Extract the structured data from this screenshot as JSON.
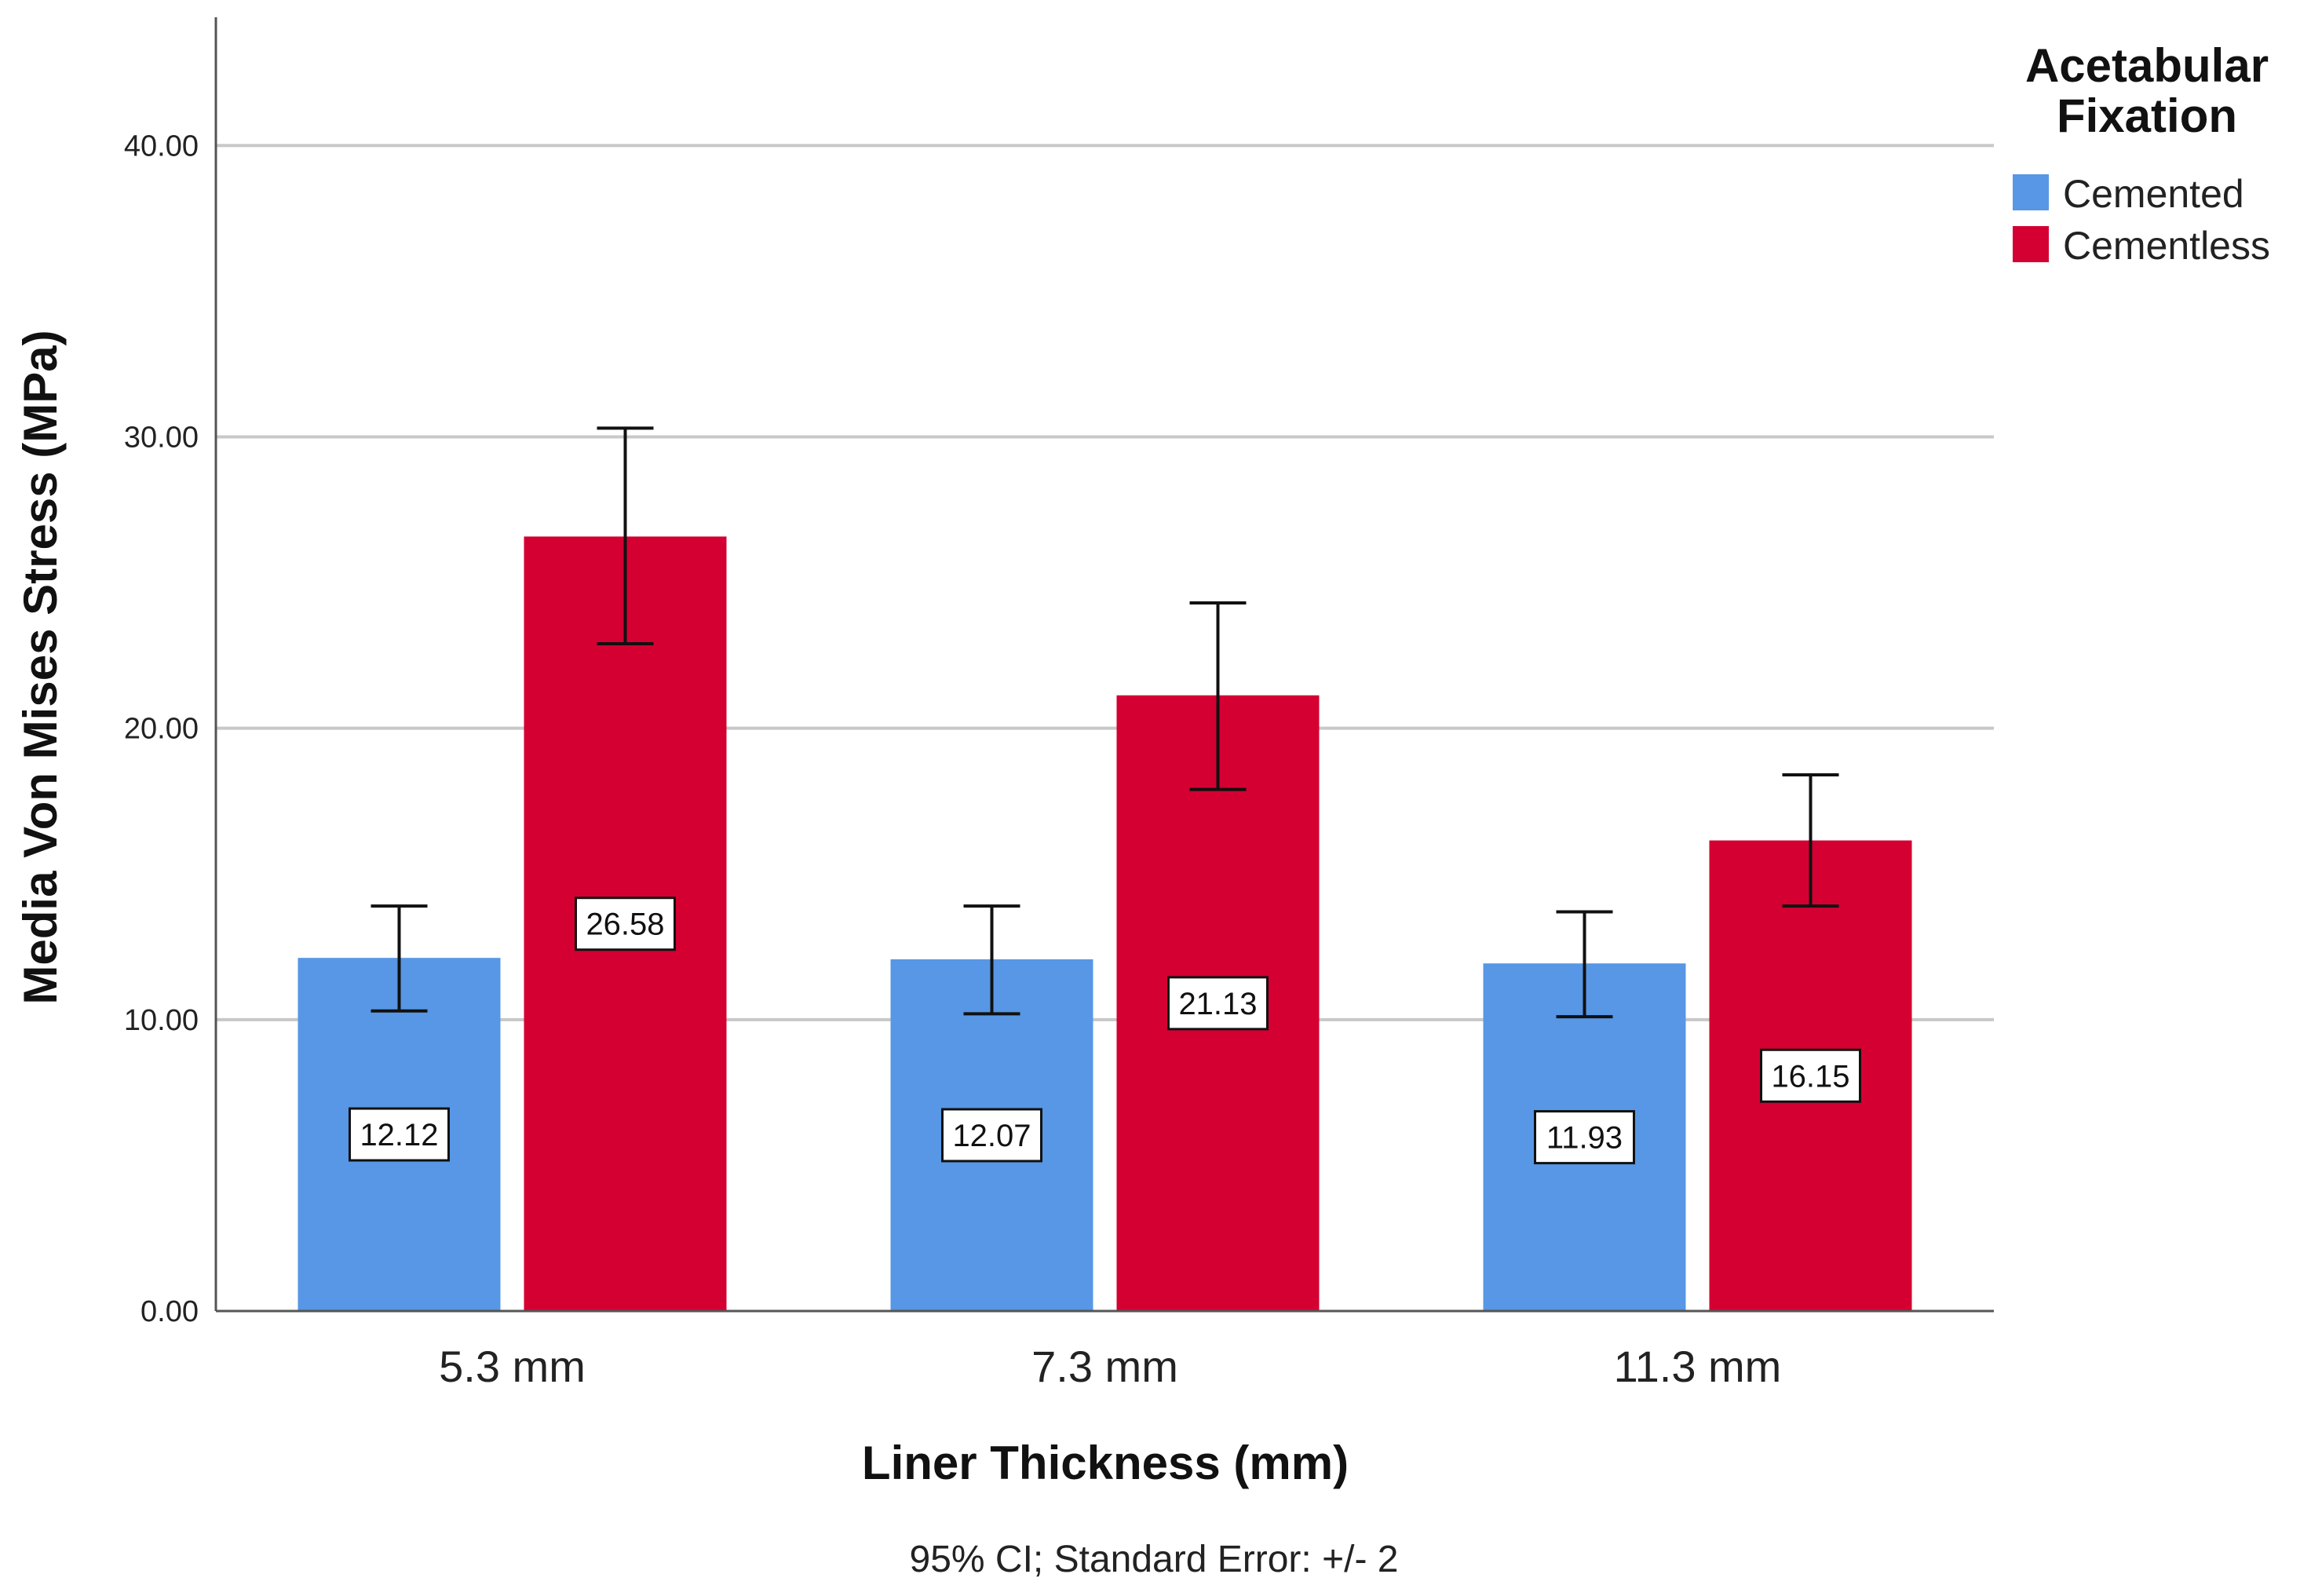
{
  "chart_data": {
    "type": "bar",
    "categories": [
      "5.3 mm",
      "7.3 mm",
      "11.3 mm"
    ],
    "series": [
      {
        "name": "Cemented",
        "color": "#5797e5",
        "values": [
          12.12,
          12.07,
          11.93
        ],
        "error_low": [
          10.3,
          10.2,
          10.1
        ],
        "error_high": [
          13.9,
          13.9,
          13.7
        ],
        "labels": [
          "12.12",
          "12.07",
          "11.93"
        ]
      },
      {
        "name": "Cementless",
        "color": "#d40032",
        "values": [
          26.58,
          21.13,
          16.15
        ],
        "error_low": [
          22.9,
          17.9,
          13.9
        ],
        "error_high": [
          30.3,
          24.3,
          18.4
        ],
        "labels": [
          "26.58",
          "21.13",
          "16.15"
        ]
      }
    ],
    "xlabel": "Liner Thickness (mm)",
    "ylabel": "Media Von Mises Stress (MPa)",
    "ylim": [
      0,
      44.4
    ],
    "yticks": [
      0,
      10,
      20,
      30,
      40
    ],
    "ytick_labels": [
      "0.00",
      "10.00",
      "20.00",
      "30.00",
      "40.00"
    ],
    "grid": true,
    "legend_title": "Acetabular Fixation",
    "legend_title_lines": [
      "Acetabular",
      "Fixation"
    ],
    "legend_position": "top-right",
    "footnote": "95% CI; Standard Error: +/- 2"
  }
}
